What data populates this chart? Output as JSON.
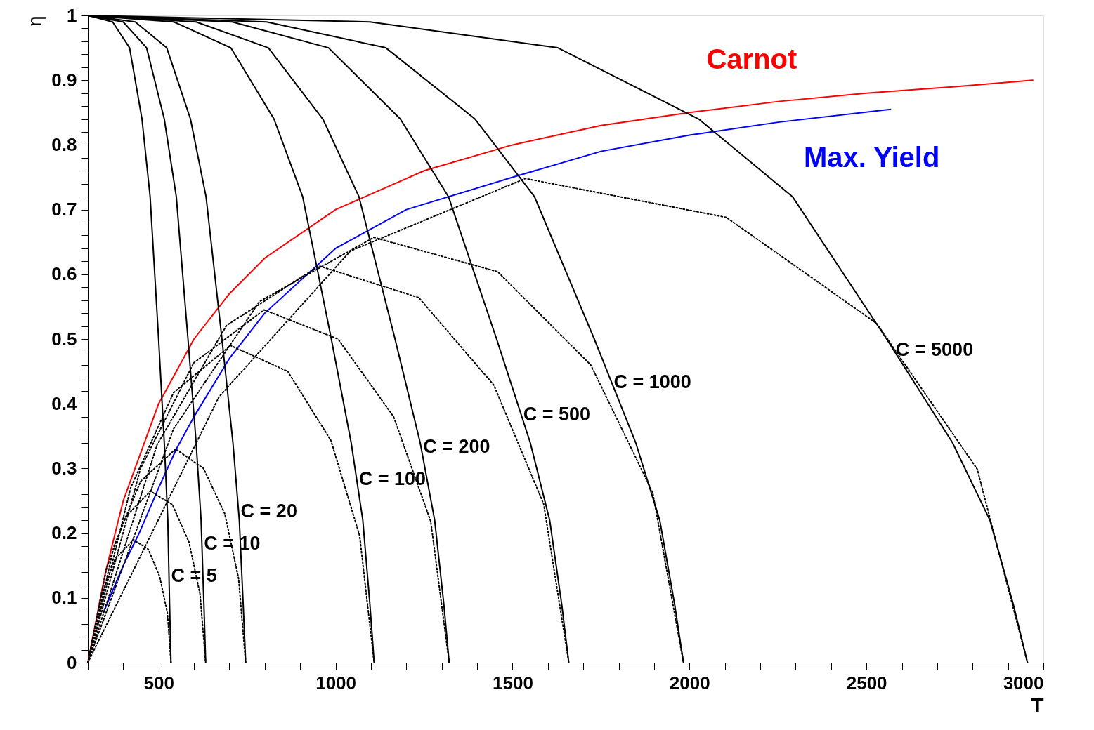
{
  "chart_data": {
    "type": "line",
    "xlabel": "T",
    "ylabel": "η",
    "xlim": [
      300,
      3000
    ],
    "ylim": [
      0,
      1
    ],
    "xticks": [
      {
        "value": 300,
        "label": null
      },
      {
        "value": 400,
        "label": null
      },
      500,
      {
        "value": 600,
        "label": null
      },
      {
        "value": 700,
        "label": null
      },
      {
        "value": 800,
        "label": null
      },
      {
        "value": 900,
        "label": null
      },
      1000,
      {
        "value": 1100,
        "label": null
      },
      {
        "value": 1200,
        "label": null
      },
      {
        "value": 1300,
        "label": null
      },
      {
        "value": 1400,
        "label": null
      },
      1500,
      {
        "value": 1600,
        "label": null
      },
      {
        "value": 1700,
        "label": null
      },
      {
        "value": 1800,
        "label": null
      },
      {
        "value": 1900,
        "label": null
      },
      2000,
      {
        "value": 2100,
        "label": null
      },
      {
        "value": 2200,
        "label": null
      },
      {
        "value": 2300,
        "label": null
      },
      {
        "value": 2400,
        "label": null
      },
      2500,
      {
        "value": 2600,
        "label": null
      },
      {
        "value": 2700,
        "label": null
      },
      {
        "value": 2800,
        "label": null
      },
      {
        "value": 2900,
        "label": null
      },
      3000
    ],
    "yticks": [
      0,
      {
        "value": 0.02,
        "label": null
      },
      {
        "value": 0.04,
        "label": null
      },
      {
        "value": 0.06,
        "label": null
      },
      {
        "value": 0.08,
        "label": null
      },
      0.1,
      {
        "value": 0.12,
        "label": null
      },
      {
        "value": 0.14,
        "label": null
      },
      {
        "value": 0.16,
        "label": null
      },
      {
        "value": 0.18,
        "label": null
      },
      0.2,
      {
        "value": 0.22,
        "label": null
      },
      {
        "value": 0.24,
        "label": null
      },
      {
        "value": 0.26,
        "label": null
      },
      {
        "value": 0.28,
        "label": null
      },
      0.3,
      {
        "value": 0.32,
        "label": null
      },
      {
        "value": 0.34,
        "label": null
      },
      {
        "value": 0.36,
        "label": null
      },
      {
        "value": 0.38,
        "label": null
      },
      0.4,
      {
        "value": 0.42,
        "label": null
      },
      {
        "value": 0.44,
        "label": null
      },
      {
        "value": 0.46,
        "label": null
      },
      {
        "value": 0.48,
        "label": null
      },
      0.5,
      {
        "value": 0.52,
        "label": null
      },
      {
        "value": 0.54,
        "label": null
      },
      {
        "value": 0.56,
        "label": null
      },
      {
        "value": 0.58,
        "label": null
      },
      0.6,
      {
        "value": 0.62,
        "label": null
      },
      {
        "value": 0.64,
        "label": null
      },
      {
        "value": 0.66,
        "label": null
      },
      {
        "value": 0.68,
        "label": null
      },
      0.7,
      {
        "value": 0.72,
        "label": null
      },
      {
        "value": 0.74,
        "label": null
      },
      {
        "value": 0.76,
        "label": null
      },
      {
        "value": 0.78,
        "label": null
      },
      0.8,
      {
        "value": 0.82,
        "label": null
      },
      {
        "value": 0.84,
        "label": null
      },
      {
        "value": 0.86,
        "label": null
      },
      {
        "value": 0.88,
        "label": null
      },
      0.9,
      {
        "value": 0.92,
        "label": null
      },
      {
        "value": 0.94,
        "label": null
      },
      {
        "value": 0.96,
        "label": null
      },
      {
        "value": 0.98,
        "label": null
      },
      1
    ],
    "grid": false,
    "marker": "none",
    "series": [
      {
        "name": "Carnot",
        "color": "#ff0000",
        "line_style": "solid",
        "x": [
          300,
          350,
          400,
          500,
          600,
          700,
          800,
          1000,
          1250,
          1500,
          1750,
          2000,
          2250,
          2500,
          2750,
          2970
        ],
        "values": [
          0,
          0.14,
          0.25,
          0.4,
          0.5,
          0.57,
          0.625,
          0.7,
          0.76,
          0.8,
          0.83,
          0.85,
          0.867,
          0.88,
          0.89,
          0.9
        ]
      },
      {
        "name": "Max. Yield",
        "color": "#0000ff",
        "line_style": "solid",
        "x": [
          346,
          400,
          445,
          500,
          550,
          600,
          700,
          800,
          1000,
          1200,
          1500,
          1750,
          2000,
          2250,
          2568
        ],
        "values": [
          0.08,
          0.15,
          0.2,
          0.27,
          0.33,
          0.38,
          0.47,
          0.54,
          0.64,
          0.7,
          0.75,
          0.79,
          0.815,
          0.835,
          0.855
        ]
      },
      {
        "name": "C = 5",
        "color": "#000000",
        "line_style": "solid",
        "x": [
          300,
          370,
          418,
          453,
          476,
          500,
          516,
          526,
          531,
          535
        ],
        "values": [
          1,
          0.99,
          0.95,
          0.84,
          0.72,
          0.5,
          0.34,
          0.22,
          0.09,
          0
        ]
      },
      {
        "name": "C = 10",
        "color": "#000000",
        "line_style": "solid",
        "x": [
          300,
          400,
          466,
          516,
          550,
          583,
          606,
          620,
          628,
          633
        ],
        "values": [
          1,
          0.99,
          0.95,
          0.84,
          0.72,
          0.5,
          0.34,
          0.22,
          0.09,
          0
        ]
      },
      {
        "name": "C = 20",
        "color": "#000000",
        "line_style": "solid",
        "x": [
          300,
          434,
          523,
          590,
          634,
          679,
          710,
          728,
          739,
          746
        ],
        "values": [
          1,
          0.99,
          0.95,
          0.84,
          0.72,
          0.5,
          0.34,
          0.22,
          0.09,
          0
        ]
      },
      {
        "name": "C = 100",
        "color": "#000000",
        "line_style": "solid",
        "x": [
          300,
          543,
          704,
          826,
          907,
          988,
          1044,
          1077,
          1097,
          1109
        ],
        "values": [
          1,
          0.99,
          0.95,
          0.84,
          0.72,
          0.5,
          0.34,
          0.22,
          0.09,
          0
        ]
      },
      {
        "name": "C = 200",
        "color": "#000000",
        "line_style": "solid",
        "x": [
          300,
          606,
          810,
          964,
          1066,
          1168,
          1239,
          1280,
          1306,
          1321
        ],
        "values": [
          1,
          0.99,
          0.95,
          0.84,
          0.72,
          0.5,
          0.34,
          0.22,
          0.09,
          0
        ]
      },
      {
        "name": "C = 500",
        "color": "#000000",
        "line_style": "solid",
        "x": [
          300,
          708,
          980,
          1183,
          1319,
          1455,
          1550,
          1605,
          1639,
          1659
        ],
        "values": [
          1,
          0.99,
          0.95,
          0.84,
          0.72,
          0.5,
          0.34,
          0.22,
          0.09,
          0
        ]
      },
      {
        "name": "C = 1000",
        "color": "#000000",
        "line_style": "solid",
        "x": [
          300,
          805,
          1142,
          1394,
          1562,
          1731,
          1848,
          1916,
          1958,
          1983
        ],
        "values": [
          1,
          0.99,
          0.95,
          0.84,
          0.72,
          0.5,
          0.34,
          0.22,
          0.09,
          0
        ]
      },
      {
        "name": "C = 5000",
        "color": "#000000",
        "line_style": "solid",
        "x": [
          300,
          1097,
          1628,
          2026,
          2291,
          2557,
          2743,
          2849,
          2915,
          2955
        ],
        "values": [
          1,
          0.99,
          0.95,
          0.84,
          0.72,
          0.5,
          0.34,
          0.22,
          0.09,
          0
        ]
      },
      {
        "color": "#000000",
        "line_style": "dotted",
        "x": [
          300,
          339,
          377,
          429,
          471,
          503,
          525,
          535
        ],
        "values": [
          0,
          0.105,
          0.16,
          0.19,
          0.175,
          0.133,
          0.076,
          0
        ]
      },
      {
        "color": "#000000",
        "line_style": "dotted",
        "x": [
          300,
          353,
          406,
          477,
          539,
          586,
          617,
          633
        ],
        "values": [
          0,
          0.146,
          0.225,
          0.265,
          0.244,
          0.186,
          0.106,
          0
        ]
      },
      {
        "color": "#000000",
        "line_style": "dotted",
        "x": [
          300,
          374,
          449,
          548,
          627,
          687,
          726,
          746
        ],
        "values": [
          0,
          0.18,
          0.28,
          0.33,
          0.3,
          0.23,
          0.13,
          0
        ]
      },
      {
        "color": "#000000",
        "line_style": "dotted",
        "x": [
          300,
          421,
          542,
          703,
          865,
          987,
          1068,
          1109
        ],
        "values": [
          0,
          0.27,
          0.417,
          0.49,
          0.45,
          0.343,
          0.196,
          0
        ]
      },
      {
        "color": "#000000",
        "line_style": "dotted",
        "x": [
          300,
          449,
          599,
          798,
          1007,
          1164,
          1269,
          1321
        ],
        "values": [
          0,
          0.3,
          0.463,
          0.545,
          0.5,
          0.38,
          0.218,
          0
        ]
      },
      {
        "color": "#000000",
        "line_style": "dotted",
        "x": [
          300,
          496,
          692,
          953,
          1235,
          1447,
          1588,
          1659
        ],
        "values": [
          0,
          0.337,
          0.521,
          0.613,
          0.564,
          0.429,
          0.245,
          0
        ]
      },
      {
        "color": "#000000",
        "line_style": "dotted",
        "x": [
          300,
          542,
          785,
          1108,
          1458,
          1721,
          1896,
          1983
        ],
        "values": [
          0,
          0.361,
          0.558,
          0.657,
          0.604,
          0.46,
          0.263,
          0
        ]
      },
      {
        "color": "#000000",
        "line_style": "dotted",
        "x": [
          300,
          671,
          1042,
          1536,
          2104,
          2529,
          2813,
          2955
        ],
        "values": [
          0,
          0.411,
          0.636,
          0.748,
          0.688,
          0.524,
          0.299,
          0
        ]
      }
    ]
  }
}
